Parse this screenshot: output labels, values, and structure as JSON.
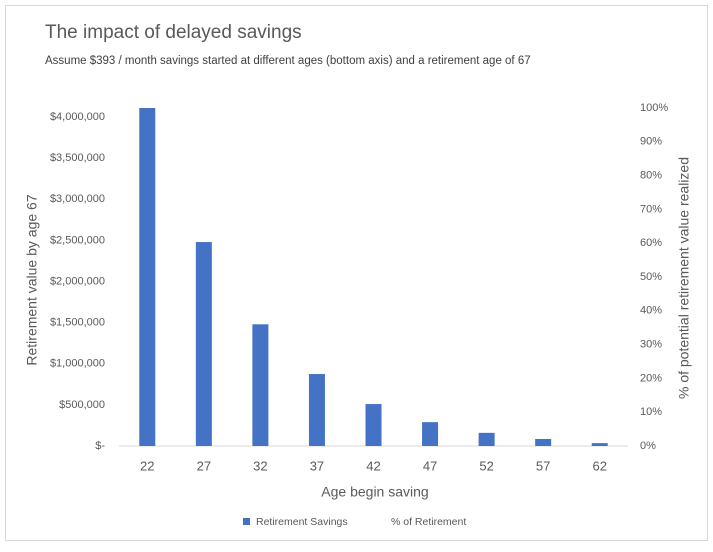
{
  "chart_data": {
    "type": "bar",
    "title": "The impact of delayed savings",
    "subtitle": "Assume $393 / month savings started at different ages (bottom axis) and a retirement age of 67",
    "x_label": "Age begin saving",
    "y_label": "Retirement value by age 67",
    "y2_label": "% of potential retirement value realized",
    "categories": [
      "22",
      "27",
      "32",
      "37",
      "42",
      "47",
      "52",
      "57",
      "62"
    ],
    "series": [
      {
        "name": "Retirement Savings",
        "color": "#4472c4",
        "values": [
          4110000,
          2480000,
          1480000,
          875000,
          510000,
          290000,
          160000,
          85000,
          35000
        ]
      },
      {
        "name": "% of Retirement",
        "axis": "y2",
        "values": [
          null,
          null,
          null,
          null,
          null,
          null,
          null,
          null,
          null
        ]
      }
    ],
    "ylim": [
      0,
      4110000
    ],
    "yticks": [
      {
        "value": 0,
        "label": "$-"
      },
      {
        "value": 500000,
        "label": "$500,000"
      },
      {
        "value": 1000000,
        "label": "$1,000,000"
      },
      {
        "value": 1500000,
        "label": "$1,500,000"
      },
      {
        "value": 2000000,
        "label": "$2,000,000"
      },
      {
        "value": 2500000,
        "label": "$2,500,000"
      },
      {
        "value": 3000000,
        "label": "$3,000,000"
      },
      {
        "value": 3500000,
        "label": "$3,500,000"
      },
      {
        "value": 4000000,
        "label": "$4,000,000"
      }
    ],
    "y2lim": [
      0,
      100
    ],
    "y2ticks": [
      {
        "value": 0,
        "label": "0%"
      },
      {
        "value": 10,
        "label": "10%"
      },
      {
        "value": 20,
        "label": "20%"
      },
      {
        "value": 30,
        "label": "30%"
      },
      {
        "value": 40,
        "label": "40%"
      },
      {
        "value": 50,
        "label": "50%"
      },
      {
        "value": 60,
        "label": "60%"
      },
      {
        "value": 70,
        "label": "70%"
      },
      {
        "value": 80,
        "label": "80%"
      },
      {
        "value": 90,
        "label": "90%"
      },
      {
        "value": 100,
        "label": "100%"
      }
    ],
    "legend": "bottom"
  }
}
